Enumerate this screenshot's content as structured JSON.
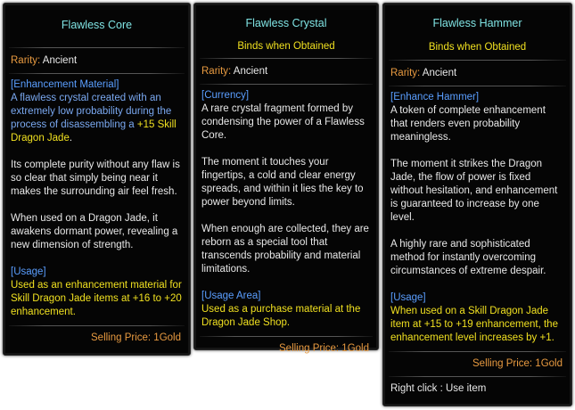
{
  "panels": [
    {
      "title": "Flawless Core",
      "rarity_label": "Rarity:",
      "rarity": "Ancient",
      "category": "[Enhancement Material]",
      "desc_intro": "A flawless crystal created with an extremely low probability during the process of disassembling a",
      "desc_highlight": "+15 Skill Dragon Jade",
      "desc_end": ".",
      "para2": "Its complete purity without any flaw is so clear that simply being near it makes the surrounding air feel fresh.",
      "para3": "When used on a Dragon Jade, it awakens dormant power, revealing a new dimension of strength.",
      "usage_label": "[Usage]",
      "usage": "Used as an enhancement material for Skill Dragon Jade items at +16 to +20 enhancement.",
      "price": "Selling Price: 1Gold"
    },
    {
      "title": "Flawless Crystal",
      "binds": "Binds when Obtained",
      "rarity_label": "Rarity:",
      "rarity": "Ancient",
      "category": "[Currency]",
      "para1": "A rare crystal fragment formed by condensing the power of a Flawless Core.",
      "para2": "The moment it touches your fingertips, a cold and clear energy spreads, and within it lies the key to power beyond limits.",
      "para3": "When enough are collected, they are reborn as a special tool that transcends probability and material limitations.",
      "usage_label": "[Usage Area]",
      "usage": "Used as a purchase material at the Dragon Jade Shop.",
      "price": "Selling Price: 1Gold"
    },
    {
      "title": "Flawless Hammer",
      "binds": "Binds when Obtained",
      "rarity_label": "Rarity:",
      "rarity": "Ancient",
      "category": "[Enhance Hammer]",
      "para1": "A token of complete enhancement that renders even probability meaningless.",
      "para2": "The moment it strikes the Dragon Jade, the flow of power is fixed without hesitation, and enhancement is guaranteed to increase by one level.",
      "para3": "A highly rare and sophisticated method for instantly overcoming circumstances of extreme despair.",
      "usage_label": "[Usage]",
      "usage": "When used on a Skill Dragon Jade item at +15 to +19 enhancement, the enhancement level increases by +1.",
      "price": "Selling Price: 1Gold",
      "hint": "Right click : Use item"
    }
  ]
}
